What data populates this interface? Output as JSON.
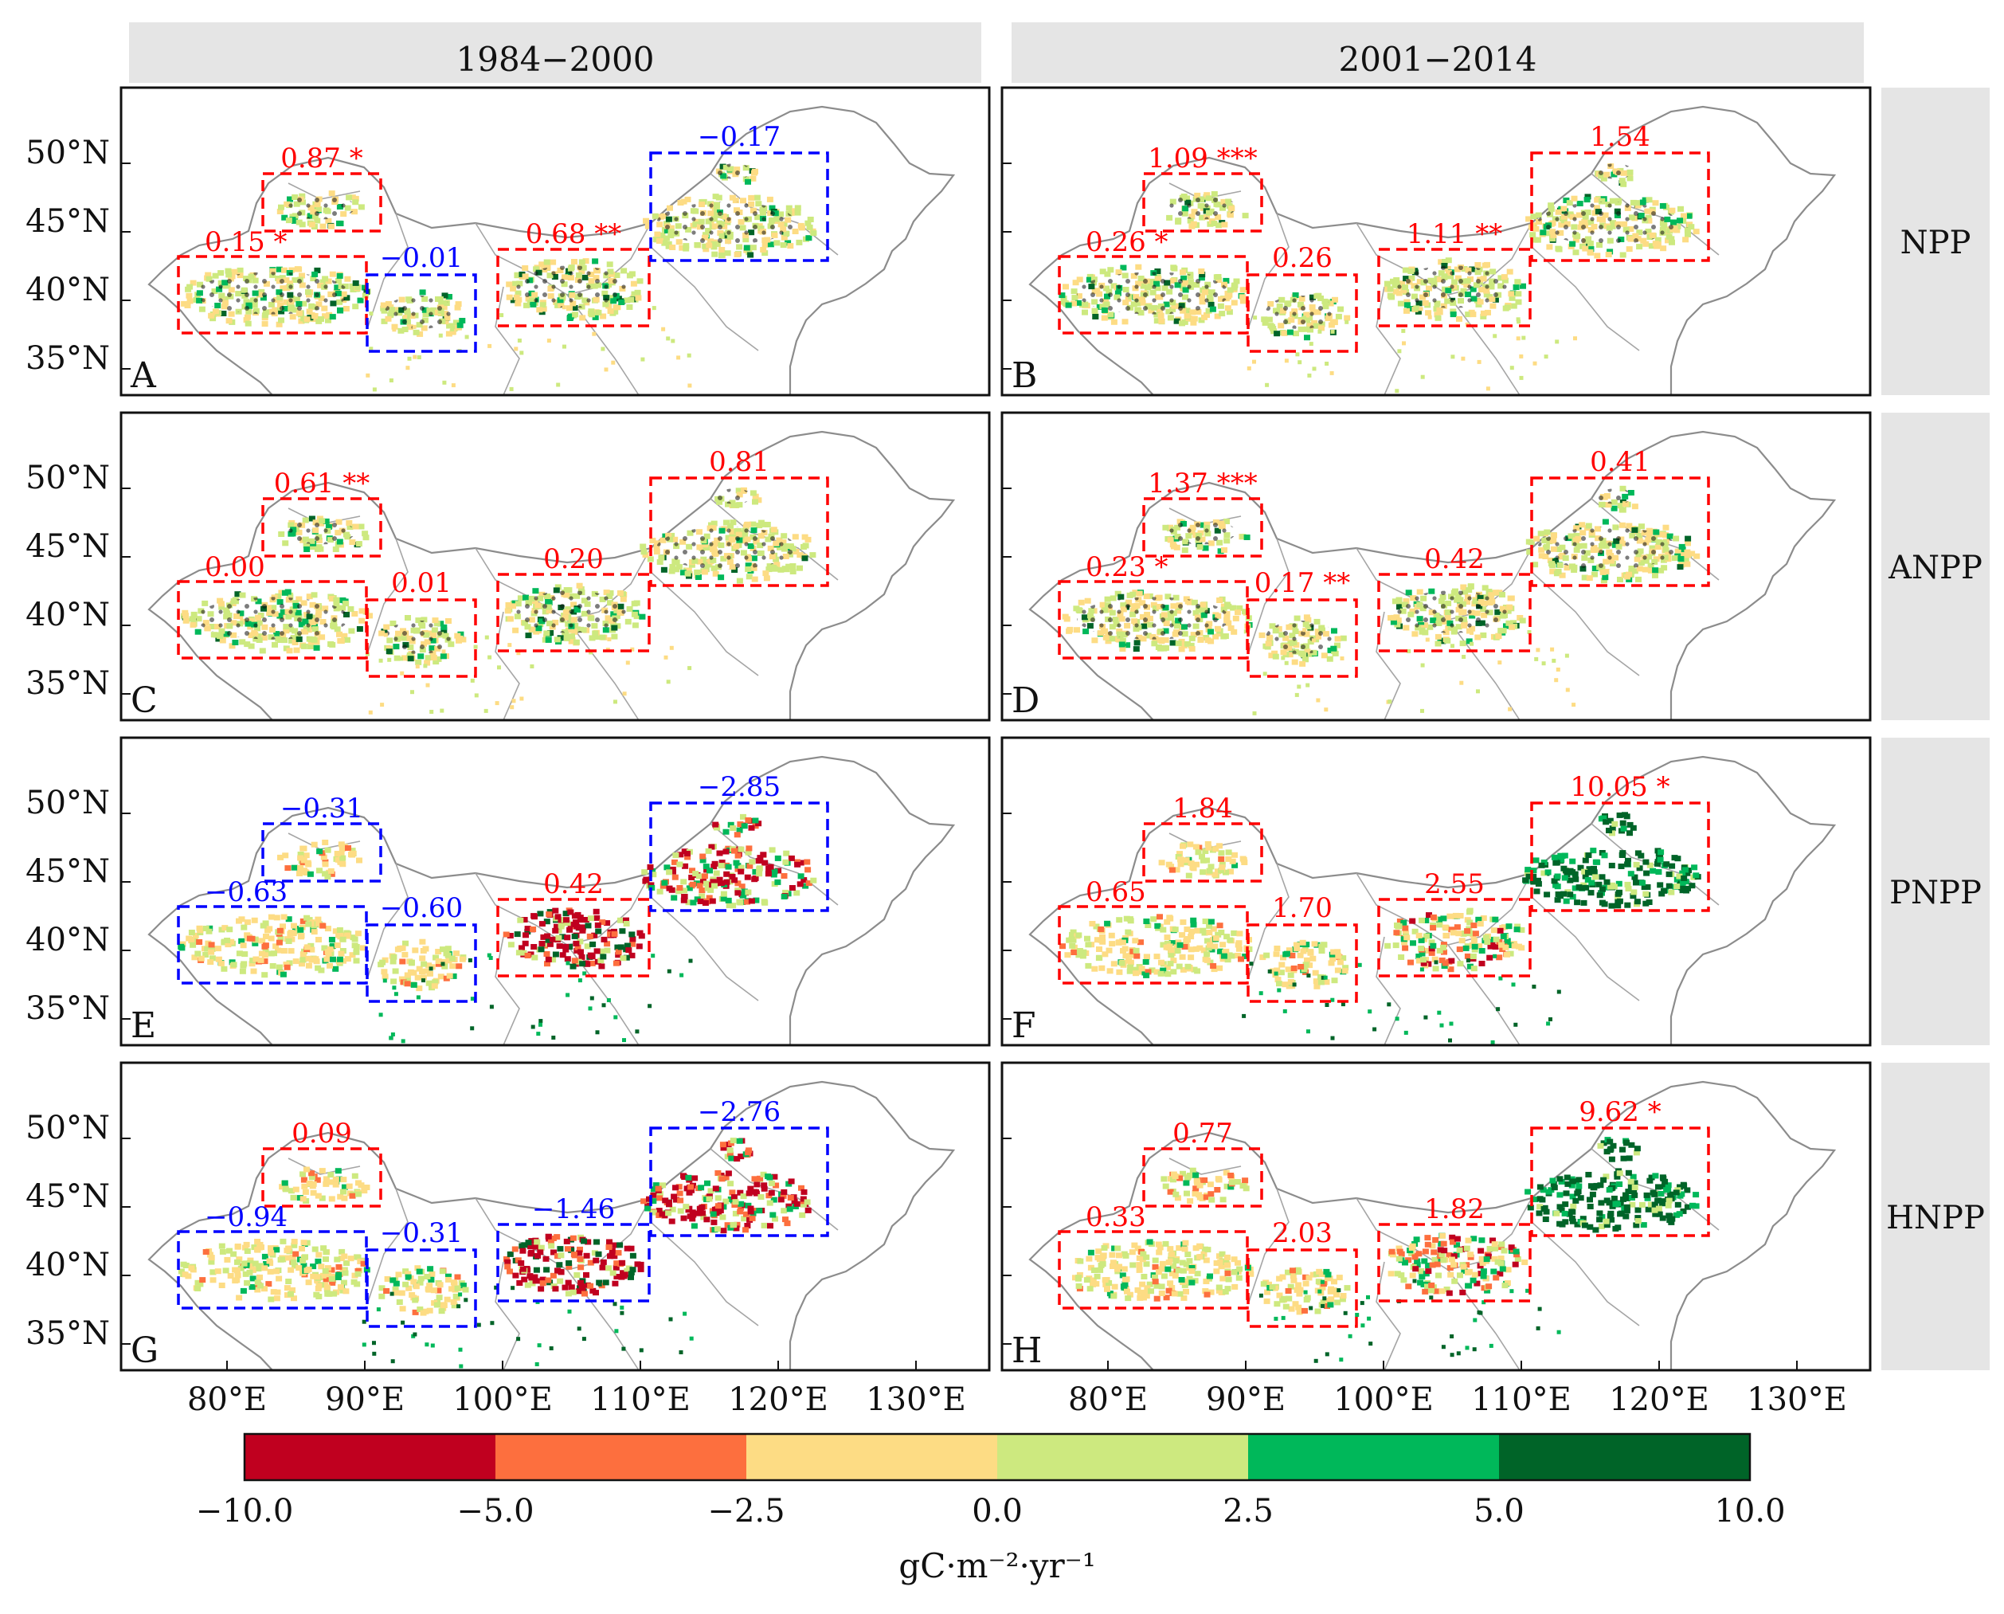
{
  "columns": [
    "1984−2000",
    "2001−2014"
  ],
  "rows": [
    "NPP",
    "ANPP",
    "PNPP",
    "HNPP"
  ],
  "lat_ticks": [
    "35°N",
    "40°N",
    "45°N",
    "50°N"
  ],
  "lon_ticks": [
    "80°E",
    "90°E",
    "100°E",
    "110°E",
    "120°E",
    "130°E"
  ],
  "colorbar": {
    "ticks": [
      "−10.0",
      "−5.0",
      "−2.5",
      "0.0",
      "2.5",
      "5.0",
      "10.0"
    ],
    "unit": "gC·m⁻²·yr⁻¹",
    "bins": [
      {
        "from": -10.0,
        "to": -5.0,
        "color": "#c0001f"
      },
      {
        "from": -5.0,
        "to": -2.5,
        "color": "#fd6f3e"
      },
      {
        "from": -2.5,
        "to": 0.0,
        "color": "#fddc84"
      },
      {
        "from": 0.0,
        "to": 2.5,
        "color": "#cde97f"
      },
      {
        "from": 2.5,
        "to": 5.0,
        "color": "#00b85a"
      },
      {
        "from": 5.0,
        "to": 10.0,
        "color": "#006428"
      }
    ]
  },
  "colors": {
    "positive": "#ff0000",
    "negative": "#0000ff",
    "strip": "#e5e5e5",
    "border": "#8c8c8c"
  },
  "panels": [
    {
      "id": "A",
      "period": "1984−2000",
      "variable": "NPP",
      "regions": [
        {
          "label": "0.15 *",
          "sign": "pos"
        },
        {
          "label": "0.87 *",
          "sign": "pos"
        },
        {
          "label": "−0.01",
          "sign": "neg"
        },
        {
          "label": "0.68 **",
          "sign": "pos"
        },
        {
          "label": "−0.17",
          "sign": "neg"
        }
      ]
    },
    {
      "id": "B",
      "period": "2001−2014",
      "variable": "NPP",
      "regions": [
        {
          "label": "0.26 *",
          "sign": "pos"
        },
        {
          "label": "1.09 ***",
          "sign": "pos"
        },
        {
          "label": "0.26",
          "sign": "pos"
        },
        {
          "label": "1.11 **",
          "sign": "pos"
        },
        {
          "label": "1.54",
          "sign": "pos"
        }
      ]
    },
    {
      "id": "C",
      "period": "1984−2000",
      "variable": "ANPP",
      "regions": [
        {
          "label": "0.00",
          "sign": "pos"
        },
        {
          "label": "0.61 **",
          "sign": "pos"
        },
        {
          "label": "0.01",
          "sign": "pos"
        },
        {
          "label": "0.20",
          "sign": "pos"
        },
        {
          "label": "0.81",
          "sign": "pos"
        }
      ]
    },
    {
      "id": "D",
      "period": "2001−2014",
      "variable": "ANPP",
      "regions": [
        {
          "label": "0.23 *",
          "sign": "pos"
        },
        {
          "label": "1.37 ***",
          "sign": "pos"
        },
        {
          "label": "0.17 **",
          "sign": "pos"
        },
        {
          "label": "0.42",
          "sign": "pos"
        },
        {
          "label": "0.41",
          "sign": "pos"
        }
      ]
    },
    {
      "id": "E",
      "period": "1984−2000",
      "variable": "PNPP",
      "regions": [
        {
          "label": "−0.63",
          "sign": "neg"
        },
        {
          "label": "−0.31",
          "sign": "neg"
        },
        {
          "label": "−0.60",
          "sign": "neg"
        },
        {
          "label": "0.42",
          "sign": "pos"
        },
        {
          "label": "−2.85",
          "sign": "neg"
        }
      ]
    },
    {
      "id": "F",
      "period": "2001−2014",
      "variable": "PNPP",
      "regions": [
        {
          "label": "0.65",
          "sign": "pos"
        },
        {
          "label": "1.84",
          "sign": "pos"
        },
        {
          "label": "1.70",
          "sign": "pos"
        },
        {
          "label": "2.55",
          "sign": "pos"
        },
        {
          "label": "10.05 *",
          "sign": "pos"
        }
      ]
    },
    {
      "id": "G",
      "period": "1984−2000",
      "variable": "HNPP",
      "regions": [
        {
          "label": "−0.94",
          "sign": "neg"
        },
        {
          "label": "0.09",
          "sign": "pos"
        },
        {
          "label": "−0.31",
          "sign": "neg"
        },
        {
          "label": "−1.46",
          "sign": "neg"
        },
        {
          "label": "−2.76",
          "sign": "neg"
        }
      ]
    },
    {
      "id": "H",
      "period": "2001−2014",
      "variable": "HNPP",
      "regions": [
        {
          "label": "0.33",
          "sign": "pos"
        },
        {
          "label": "0.77",
          "sign": "pos"
        },
        {
          "label": "2.03",
          "sign": "pos"
        },
        {
          "label": "1.82",
          "sign": "pos"
        },
        {
          "label": "9.62 *",
          "sign": "pos"
        }
      ]
    }
  ]
}
